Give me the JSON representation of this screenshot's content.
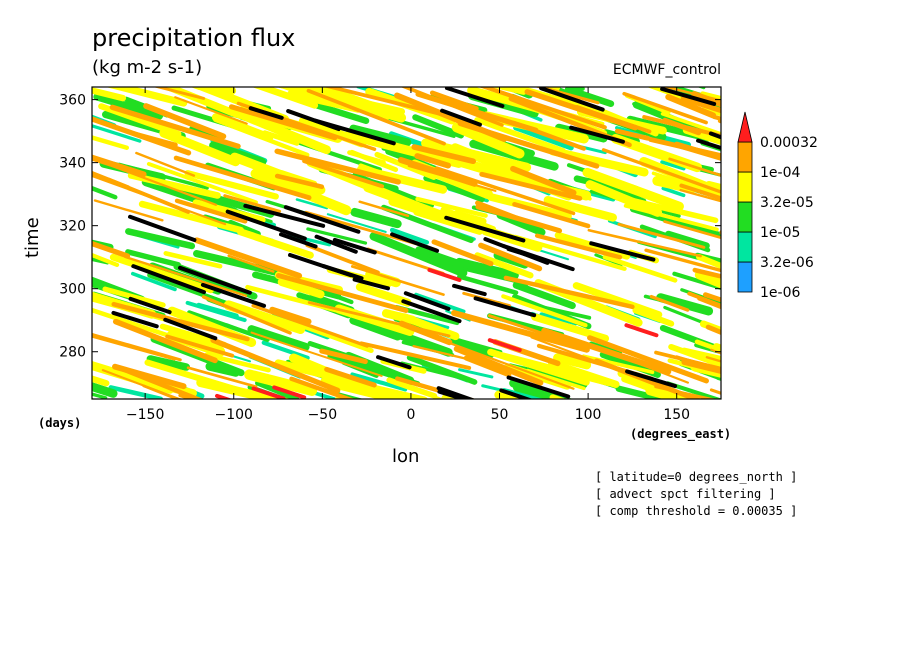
{
  "chart_data": {
    "type": "heatmap",
    "title": "precipitation flux",
    "units": "(kg m-2 s-1)",
    "run_label": "ECMWF_control",
    "xlabel": "lon",
    "ylabel": "time",
    "x_unit": "(degrees_east)",
    "y_unit": "(days)",
    "xlim": [
      -180,
      175
    ],
    "ylim": [
      265,
      364
    ],
    "xticks": [
      -150,
      -100,
      -50,
      0,
      50,
      100,
      150
    ],
    "yticks": [
      280,
      300,
      320,
      340,
      360
    ],
    "xtick_labels": [
      "−150",
      "−100",
      "−50",
      "0",
      "50",
      "100",
      "150"
    ],
    "ytick_labels": [
      "280",
      "300",
      "320",
      "340",
      "360"
    ],
    "colorbar": {
      "levels": [
        "1e-06",
        "3.2e-06",
        "1e-05",
        "3.2e-05",
        "1e-04",
        "0.00032"
      ],
      "colors": [
        "#1ea0ff",
        "#00e6a0",
        "#22dd22",
        "#ffff00",
        "#ffa500",
        "#ff1e1e"
      ]
    },
    "threshold_color": "#000000",
    "annotations": [
      "[ latitude=0 degrees_north ]",
      "[ advect spct filtering ]",
      "[ comp threshold = 0.00035 ]"
    ]
  }
}
